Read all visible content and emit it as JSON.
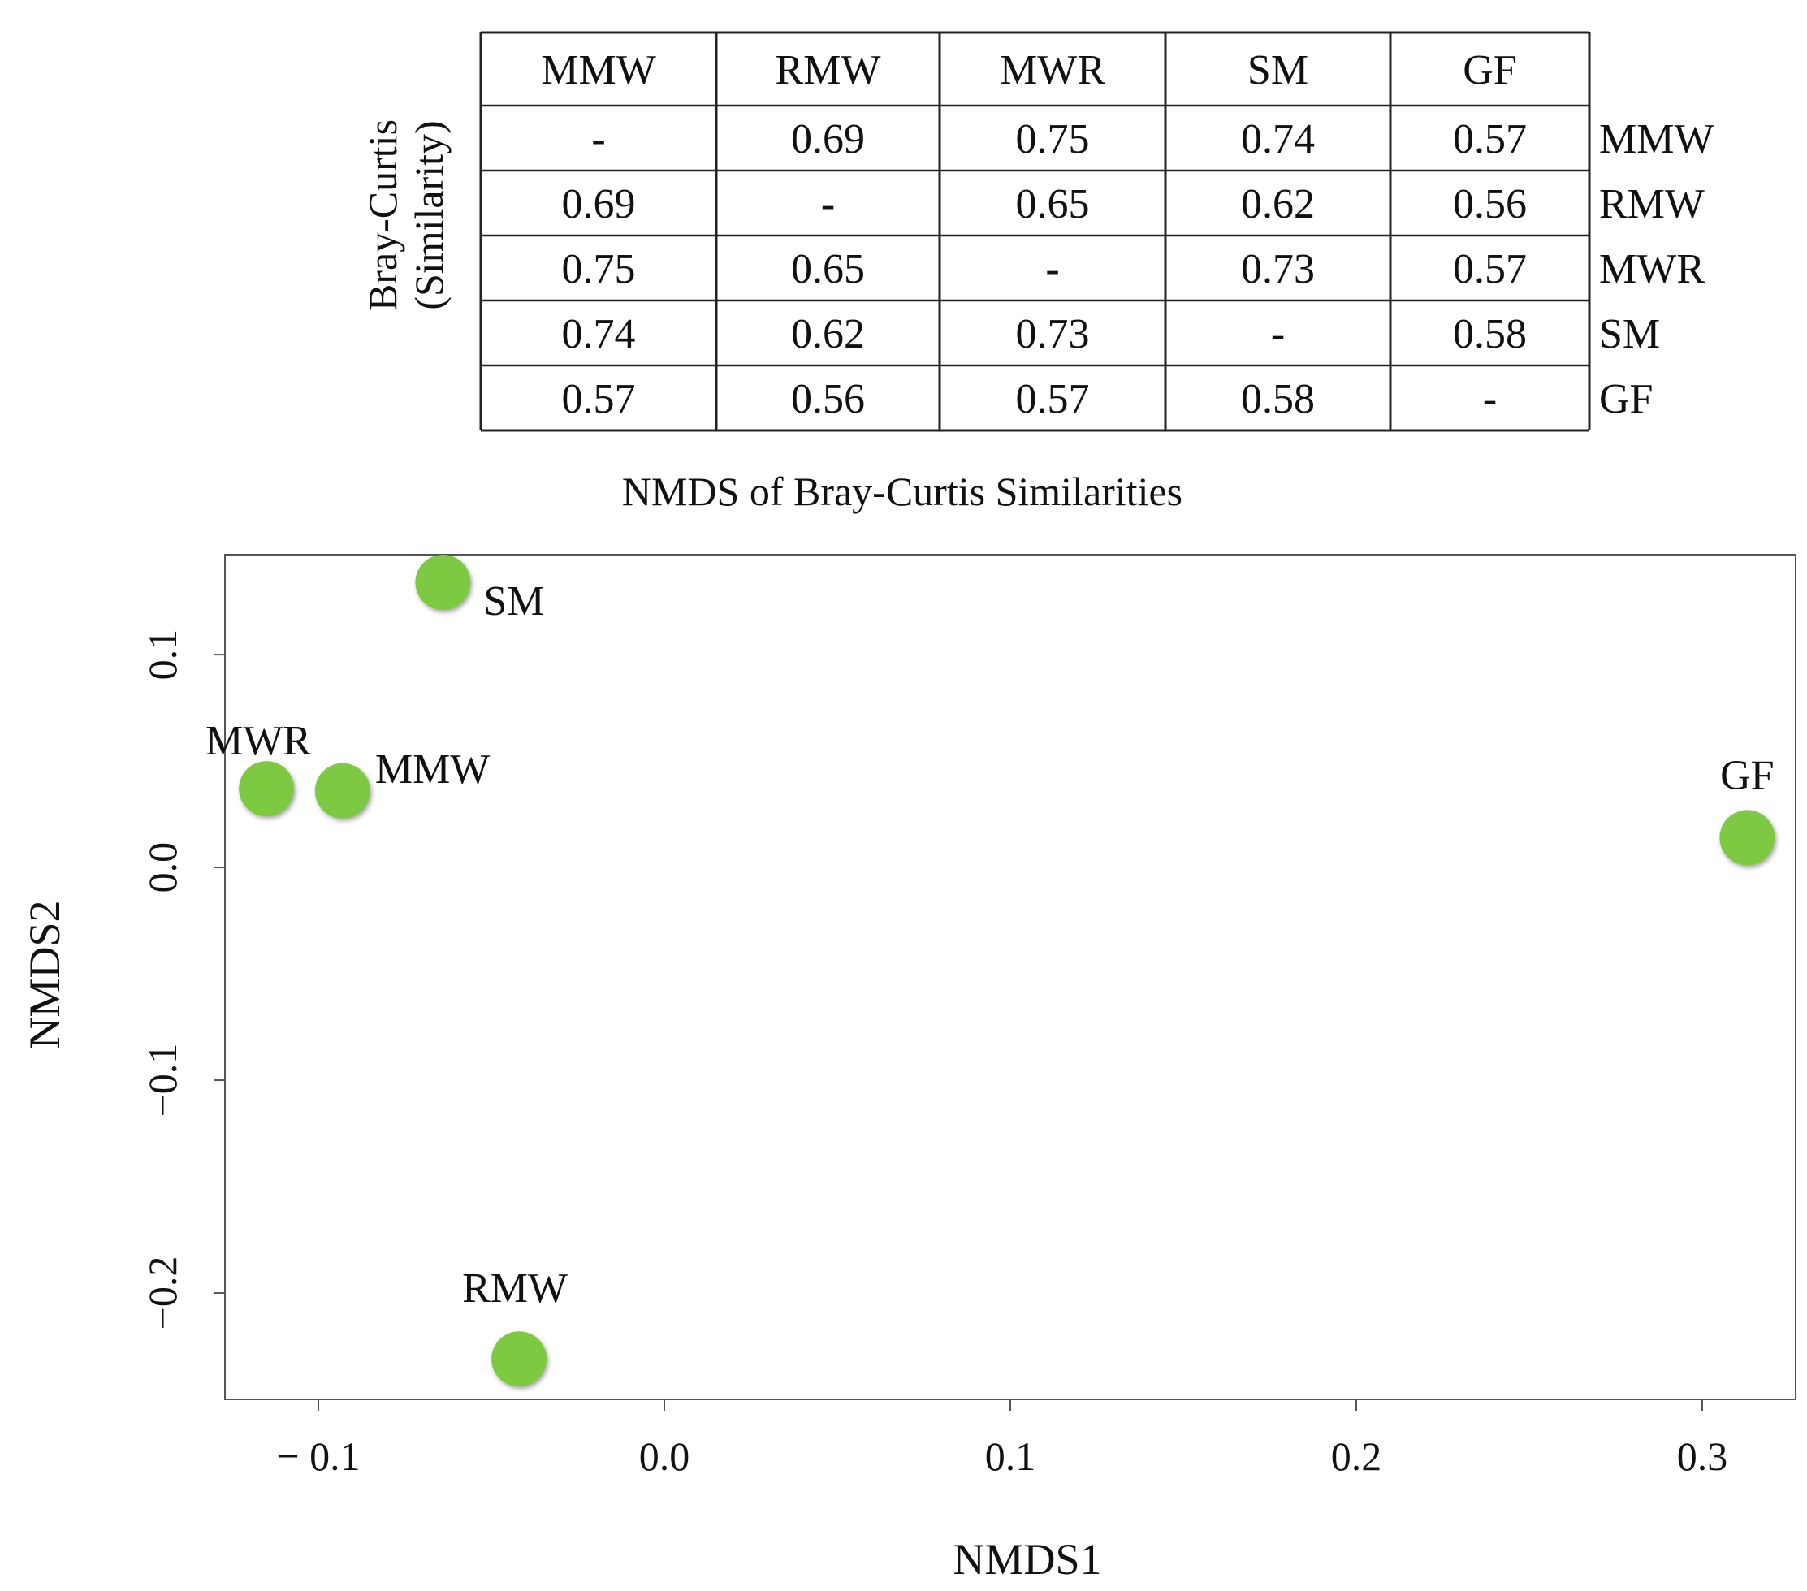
{
  "table": {
    "ylabel_line1": "Bray-Curtis",
    "ylabel_line2": "(Similarity)",
    "col_headers": [
      "MMW",
      "RMW",
      "MWR",
      "SM",
      "GF"
    ],
    "row_labels": [
      "MMW",
      "RMW",
      "MWR",
      "SM",
      "GF"
    ],
    "rows": [
      [
        "-",
        "0.69",
        "0.75",
        "0.74",
        "0.57"
      ],
      [
        "0.69",
        "-",
        "0.65",
        "0.62",
        "0.56"
      ],
      [
        "0.75",
        "0.65",
        "-",
        "0.73",
        "0.57"
      ],
      [
        "0.74",
        "0.62",
        "0.73",
        "-",
        "0.58"
      ],
      [
        "0.57",
        "0.56",
        "0.57",
        "0.58",
        "-"
      ]
    ]
  },
  "chart_data": {
    "type": "scatter",
    "title": "NMDS of Bray-Curtis Similarities",
    "xlabel": "NMDS1",
    "ylabel": "NMDS2",
    "xlim": [
      -0.127,
      0.327
    ],
    "ylim": [
      -0.25,
      0.147
    ],
    "xticks": [
      -0.1,
      0.0,
      0.1,
      0.2,
      0.3
    ],
    "xtick_labels": [
      "− 0.1",
      "0.0",
      "0.1",
      "0.2",
      "0.3"
    ],
    "yticks": [
      -0.2,
      -0.1,
      0.0,
      0.1
    ],
    "ytick_labels": [
      "−0.2",
      "−0.1",
      "0.0",
      "0.1"
    ],
    "point_color": "#7ec942",
    "points": [
      {
        "label": "SM",
        "x": -0.064,
        "y": 0.134
      },
      {
        "label": "MWR",
        "x": -0.115,
        "y": 0.037
      },
      {
        "label": "MMW",
        "x": -0.093,
        "y": 0.036
      },
      {
        "label": "GF",
        "x": 0.313,
        "y": 0.014
      },
      {
        "label": "RMW",
        "x": -0.042,
        "y": -0.231
      }
    ],
    "grid": false,
    "legend": false
  }
}
